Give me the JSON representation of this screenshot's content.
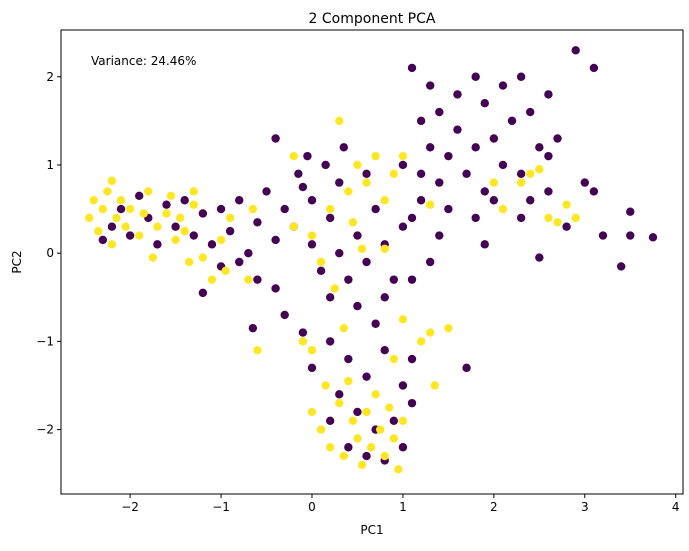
{
  "chart_data": {
    "type": "scatter",
    "title": "2 Component PCA",
    "xlabel": "PC1",
    "ylabel": "PC2",
    "annotation": "Variance: 24.46%",
    "xlim": [
      -2.76,
      4.08
    ],
    "ylim": [
      -2.73,
      2.53
    ],
    "xticks": [
      -2,
      -1,
      0,
      1,
      2,
      3,
      4
    ],
    "yticks": [
      -2,
      -1,
      0,
      1,
      2
    ],
    "xtick_labels": [
      "−2",
      "−1",
      "0",
      "1",
      "2",
      "3",
      "4"
    ],
    "ytick_labels": [
      "−2",
      "−1",
      "0",
      "1",
      "2"
    ],
    "grid": false,
    "legend": "none",
    "colormap": "viridis",
    "series": [
      {
        "color": "#440154",
        "points": [
          [
            -2.3,
            0.15
          ],
          [
            -2.2,
            0.3
          ],
          [
            -2.1,
            0.5
          ],
          [
            -2.0,
            0.2
          ],
          [
            -1.9,
            0.65
          ],
          [
            -1.8,
            0.4
          ],
          [
            -1.7,
            0.1
          ],
          [
            -1.6,
            0.55
          ],
          [
            -1.5,
            0.3
          ],
          [
            -1.4,
            0.6
          ],
          [
            -1.3,
            0.2
          ],
          [
            -1.2,
            0.45
          ],
          [
            -1.1,
            0.1
          ],
          [
            -1.0,
            0.5
          ],
          [
            -0.9,
            0.25
          ],
          [
            -0.8,
            0.6
          ],
          [
            -0.7,
            0.0
          ],
          [
            -0.6,
            0.35
          ],
          [
            -0.5,
            0.7
          ],
          [
            -0.4,
            0.15
          ],
          [
            -0.3,
            0.5
          ],
          [
            -0.2,
            0.3
          ],
          [
            -0.1,
            0.75
          ],
          [
            -0.6,
            -0.3
          ],
          [
            -0.8,
            -0.1
          ],
          [
            -1.2,
            -0.45
          ],
          [
            -1.0,
            -0.15
          ],
          [
            -0.4,
            -0.4
          ],
          [
            -0.3,
            -0.7
          ],
          [
            -0.65,
            -0.85
          ],
          [
            0,
            0.1
          ],
          [
            0.1,
            -0.2
          ],
          [
            0.2,
            0.4
          ],
          [
            0.3,
            0.0
          ],
          [
            0.4,
            -0.3
          ],
          [
            0.5,
            0.2
          ],
          [
            0.6,
            -0.1
          ],
          [
            0.7,
            0.5
          ],
          [
            0.8,
            0.1
          ],
          [
            0.9,
            -0.3
          ],
          [
            1.0,
            0.3
          ],
          [
            0.2,
            -0.5
          ],
          [
            0.5,
            -0.6
          ],
          [
            0.8,
            -0.5
          ],
          [
            1.1,
            -0.3
          ],
          [
            0.0,
            0.6
          ],
          [
            0.3,
            0.8
          ],
          [
            0.6,
            0.9
          ],
          [
            0.15,
            1.0
          ],
          [
            -0.05,
            1.1
          ],
          [
            -0.4,
            1.3
          ],
          [
            -0.15,
            0.9
          ],
          [
            0.35,
            1.2
          ],
          [
            1.3,
            -0.1
          ],
          [
            1.2,
            0.6
          ],
          [
            1.2,
            0.9
          ],
          [
            1.3,
            1.2
          ],
          [
            1.4,
            0.8
          ],
          [
            1.5,
            1.1
          ],
          [
            1.6,
            1.4
          ],
          [
            1.7,
            0.9
          ],
          [
            1.8,
            1.2
          ],
          [
            1.9,
            0.7
          ],
          [
            2.0,
            1.3
          ],
          [
            2.1,
            1.0
          ],
          [
            2.2,
            1.5
          ],
          [
            2.3,
            0.9
          ],
          [
            1.4,
            1.6
          ],
          [
            1.6,
            1.8
          ],
          [
            1.9,
            1.7
          ],
          [
            2.1,
            1.9
          ],
          [
            2.4,
            1.6
          ],
          [
            2.5,
            1.2
          ],
          [
            2.6,
            1.1
          ],
          [
            2.7,
            1.3
          ],
          [
            1.2,
            1.5
          ],
          [
            1.0,
            1.0
          ],
          [
            1.1,
            0.4
          ],
          [
            1.5,
            0.5
          ],
          [
            1.8,
            0.4
          ],
          [
            1.9,
            0.1
          ],
          [
            2.0,
            0.6
          ],
          [
            2.3,
            0.4
          ],
          [
            1.3,
            1.9
          ],
          [
            1.1,
            2.1
          ],
          [
            1.8,
            2.0
          ],
          [
            2.3,
            2.0
          ],
          [
            2.6,
            1.8
          ],
          [
            2.9,
            2.3
          ],
          [
            3.1,
            2.1
          ],
          [
            2.4,
            0.6
          ],
          [
            2.6,
            0.7
          ],
          [
            2.8,
            0.3
          ],
          [
            3.0,
            0.8
          ],
          [
            3.1,
            0.7
          ],
          [
            3.2,
            0.2
          ],
          [
            3.4,
            -0.15
          ],
          [
            3.5,
            0.2
          ],
          [
            3.5,
            0.47
          ],
          [
            3.75,
            0.18
          ],
          [
            2.5,
            -0.05
          ],
          [
            1.7,
            -1.3
          ],
          [
            1.4,
            0.2
          ],
          [
            0.2,
            -1.0
          ],
          [
            0.4,
            -1.2
          ],
          [
            0.6,
            -1.4
          ],
          [
            0.8,
            -1.1
          ],
          [
            1.0,
            -1.5
          ],
          [
            0.3,
            -1.6
          ],
          [
            0.5,
            -1.8
          ],
          [
            0.7,
            -2.0
          ],
          [
            0.9,
            -1.9
          ],
          [
            1.1,
            -1.7
          ],
          [
            0.6,
            -2.3
          ],
          [
            0.8,
            -2.35
          ],
          [
            0.4,
            -2.2
          ],
          [
            0.2,
            -1.9
          ],
          [
            1.0,
            -2.2
          ],
          [
            1.1,
            -1.2
          ],
          [
            0.0,
            -1.3
          ],
          [
            -0.1,
            -0.9
          ],
          [
            0.7,
            -0.8
          ]
        ]
      },
      {
        "color": "#fde725",
        "points": [
          [
            -2.45,
            0.4
          ],
          [
            -2.4,
            0.6
          ],
          [
            -2.35,
            0.25
          ],
          [
            -2.3,
            0.5
          ],
          [
            -2.25,
            0.7
          ],
          [
            -2.2,
            0.1
          ],
          [
            -2.15,
            0.4
          ],
          [
            -2.1,
            0.6
          ],
          [
            -2.05,
            0.3
          ],
          [
            -2.0,
            0.5
          ],
          [
            -1.9,
            0.2
          ],
          [
            -1.85,
            0.45
          ],
          [
            -1.8,
            0.7
          ],
          [
            -1.7,
            0.3
          ],
          [
            -1.6,
            0.45
          ],
          [
            -1.55,
            0.65
          ],
          [
            -1.5,
            0.15
          ],
          [
            -1.45,
            0.4
          ],
          [
            -1.4,
            0.25
          ],
          [
            -1.3,
            0.55
          ],
          [
            -1.75,
            -0.05
          ],
          [
            -1.35,
            -0.1
          ],
          [
            -1.2,
            -0.05
          ],
          [
            -1.0,
            0.15
          ],
          [
            -0.9,
            0.4
          ],
          [
            -0.7,
            -0.3
          ],
          [
            -0.65,
            0.5
          ],
          [
            -0.95,
            -0.2
          ],
          [
            -1.1,
            -0.3
          ],
          [
            -1.3,
            0.7
          ],
          [
            -2.2,
            0.82
          ],
          [
            0.0,
            0.2
          ],
          [
            0.2,
            0.5
          ],
          [
            0.4,
            0.7
          ],
          [
            0.5,
            1.0
          ],
          [
            0.6,
            0.8
          ],
          [
            0.7,
            1.1
          ],
          [
            0.8,
            0.6
          ],
          [
            0.9,
            0.9
          ],
          [
            1.0,
            1.1
          ],
          [
            0.3,
            1.5
          ],
          [
            0.45,
            0.35
          ],
          [
            0.1,
            -0.1
          ],
          [
            0.55,
            0.05
          ],
          [
            0.25,
            -0.4
          ],
          [
            -0.2,
            0.3
          ],
          [
            -0.2,
            1.1
          ],
          [
            0.8,
            0.05
          ],
          [
            1.3,
            0.55
          ],
          [
            2.0,
            0.8
          ],
          [
            2.1,
            0.5
          ],
          [
            2.3,
            0.8
          ],
          [
            2.4,
            0.9
          ],
          [
            2.6,
            0.4
          ],
          [
            2.7,
            0.35
          ],
          [
            2.8,
            0.55
          ],
          [
            2.9,
            0.4
          ],
          [
            2.5,
            0.95
          ],
          [
            0.0,
            -1.8
          ],
          [
            0.1,
            -2.0
          ],
          [
            0.2,
            -2.2
          ],
          [
            0.3,
            -1.7
          ],
          [
            0.35,
            -2.3
          ],
          [
            0.45,
            -1.9
          ],
          [
            0.5,
            -2.1
          ],
          [
            0.55,
            -2.4
          ],
          [
            0.6,
            -1.8
          ],
          [
            0.65,
            -2.2
          ],
          [
            0.7,
            -1.6
          ],
          [
            0.75,
            -2.0
          ],
          [
            0.8,
            -2.3
          ],
          [
            0.85,
            -1.75
          ],
          [
            0.9,
            -2.1
          ],
          [
            0.95,
            -2.45
          ],
          [
            1.0,
            -1.9
          ],
          [
            0.15,
            -1.5
          ],
          [
            0.4,
            -1.45
          ],
          [
            0.0,
            -1.1
          ],
          [
            -0.1,
            -1.0
          ],
          [
            -0.6,
            -1.1
          ],
          [
            0.9,
            -1.2
          ],
          [
            1.3,
            -0.9
          ],
          [
            1.5,
            -0.85
          ],
          [
            1.35,
            -1.5
          ],
          [
            1.2,
            -1.0
          ],
          [
            0.35,
            -0.85
          ],
          [
            1.0,
            -0.75
          ]
        ]
      }
    ]
  }
}
